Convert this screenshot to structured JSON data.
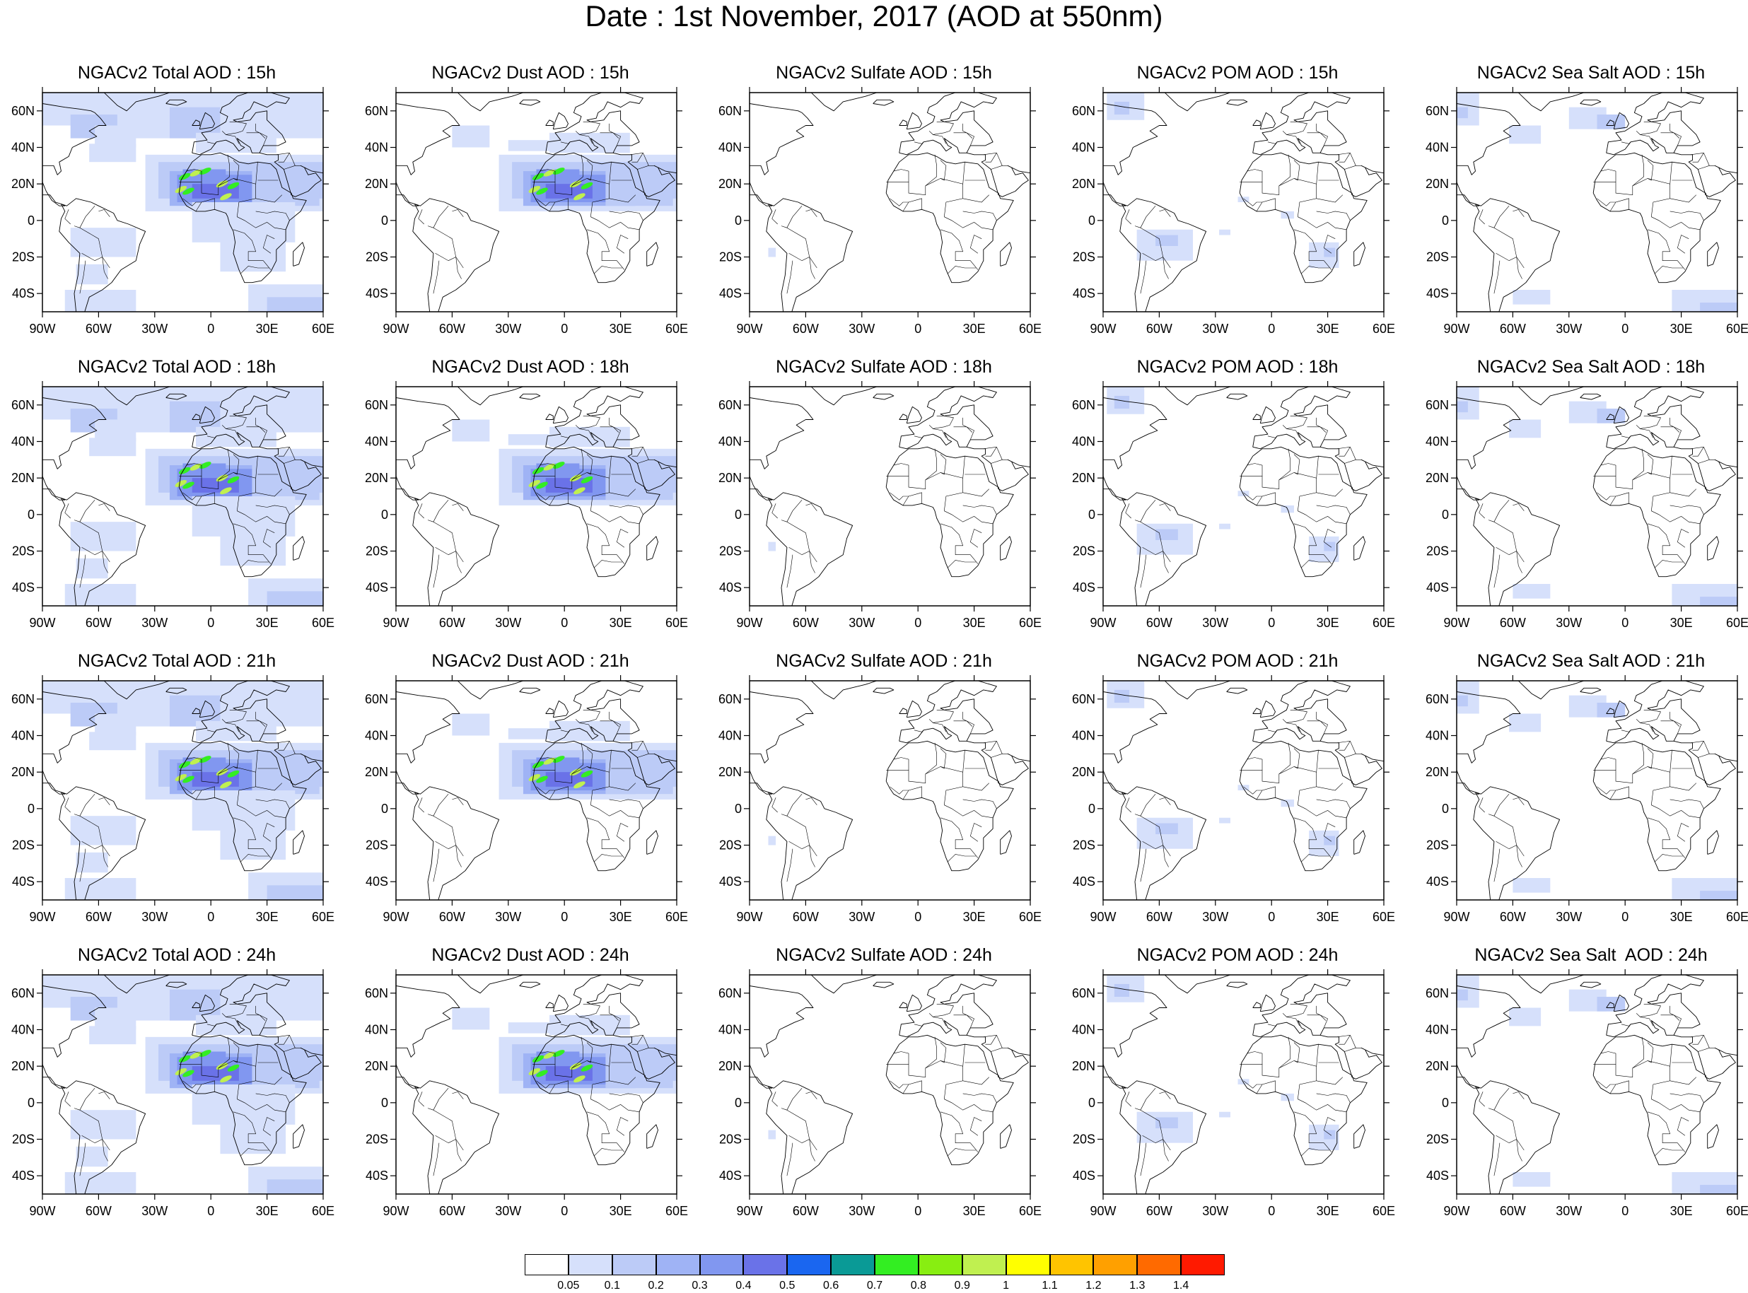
{
  "title": "Date : 1st November, 2017 (AOD at 550nm)",
  "map": {
    "lat_ticks": [
      "60N",
      "40N",
      "20N",
      "0",
      "20S",
      "40S"
    ],
    "lon_ticks": [
      "90W",
      "60W",
      "30W",
      "0",
      "30E",
      "60E"
    ],
    "lat_range": [
      -50,
      70
    ],
    "lon_range": [
      -90,
      60
    ]
  },
  "rows": [
    "15h",
    "18h",
    "21h",
    "24h"
  ],
  "columns": [
    "Total",
    "Dust",
    "Sulfate",
    "POM",
    "Sea Salt"
  ],
  "panels": [
    [
      "NGACv2 Total AOD : 15h",
      "NGACv2 Dust AOD : 15h",
      "NGACv2 Sulfate AOD : 15h",
      "NGACv2 POM AOD : 15h",
      "NGACv2 Sea Salt AOD : 15h"
    ],
    [
      "NGACv2 Total AOD : 18h",
      "NGACv2 Dust AOD : 18h",
      "NGACv2 Sulfate AOD : 18h",
      "NGACv2 POM AOD : 18h",
      "NGACv2 Sea Salt AOD : 18h"
    ],
    [
      "NGACv2 Total AOD : 21h",
      "NGACv2 Dust AOD : 21h",
      "NGACv2 Sulfate AOD : 21h",
      "NGACv2 POM AOD : 21h",
      "NGACv2 Sea Salt AOD : 21h"
    ],
    [
      "NGACv2 Total AOD : 24h",
      "NGACv2 Dust AOD : 24h",
      "NGACv2 Sulfate AOD : 24h",
      "NGACv2 POM AOD : 24h",
      "NGACv2 Sea Salt  AOD : 24h"
    ]
  ],
  "colorbar": {
    "labels": [
      "0.05",
      "0.1",
      "0.2",
      "0.3",
      "0.4",
      "0.5",
      "0.6",
      "0.7",
      "0.8",
      "0.9",
      "1",
      "1.1",
      "1.2",
      "1.3",
      "1.4"
    ],
    "colors": [
      "#ffffff",
      "#d6e0fb",
      "#bccbf7",
      "#9fb3f5",
      "#8197f0",
      "#6a72e8",
      "#1a66f0",
      "#0a9a96",
      "#33ee22",
      "#88ee11",
      "#c0f050",
      "#ffff00",
      "#ffc400",
      "#ffa000",
      "#ff6a00",
      "#ff1a00"
    ]
  }
}
